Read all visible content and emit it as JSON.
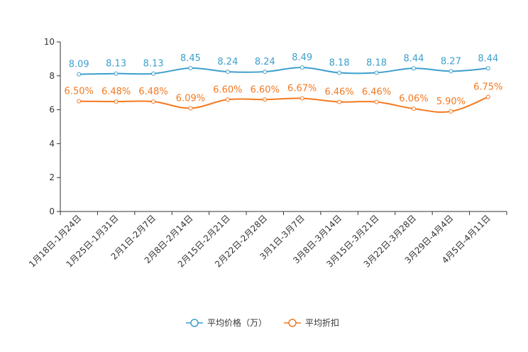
{
  "chart_data": {
    "type": "line",
    "title": "",
    "xlabel": "",
    "ylabel": "",
    "ylim": [
      0,
      10
    ],
    "yticks": [
      0,
      2,
      4,
      6,
      8,
      10
    ],
    "grid": false,
    "legend_position": "bottom-center",
    "categories": [
      "1月18日-1月24日",
      "1月25日-1月31日",
      "2月1日-2月7日",
      "2月8日-2月14日",
      "2月15日-2月21日",
      "2月22日-2月28日",
      "3月1日-3月7日",
      "3月8日-3月14日",
      "3月15日-3月21日",
      "3月22日-3月28日",
      "3月29日-4月4日",
      "4月5日-4月11日"
    ],
    "series": [
      {
        "name": "平均价格（万）",
        "color": "#3d9fcc",
        "values": [
          8.09,
          8.13,
          8.13,
          8.45,
          8.24,
          8.24,
          8.49,
          8.18,
          8.18,
          8.44,
          8.27,
          8.44
        ],
        "labels": [
          "8.09",
          "8.13",
          "8.13",
          "8.45",
          "8.24",
          "8.24",
          "8.49",
          "8.18",
          "8.18",
          "8.44",
          "8.27",
          "8.44"
        ]
      },
      {
        "name": "平均折扣",
        "color": "#f47920",
        "values": [
          6.5,
          6.48,
          6.48,
          6.09,
          6.6,
          6.6,
          6.67,
          6.46,
          6.46,
          6.06,
          5.9,
          6.75
        ],
        "labels": [
          "6.50%",
          "6.48%",
          "6.48%",
          "6.09%",
          "6.60%",
          "6.60%",
          "6.67%",
          "6.46%",
          "6.46%",
          "6.06%",
          "5.90%",
          "6.75%"
        ]
      }
    ]
  }
}
